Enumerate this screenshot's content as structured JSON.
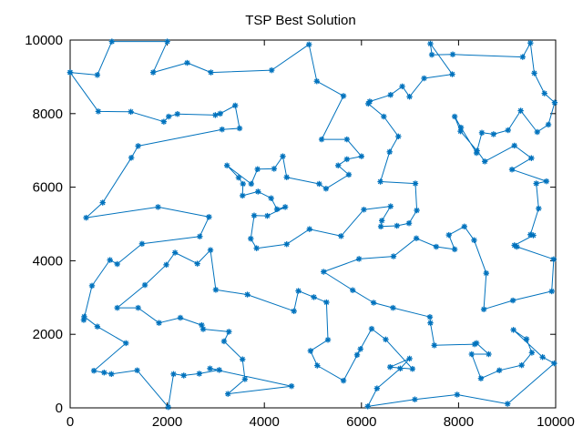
{
  "chart_data": {
    "type": "line",
    "title": "TSP Best Solution",
    "xlabel": "",
    "ylabel": "",
    "xlim": [
      0,
      10000
    ],
    "ylim": [
      0,
      10000
    ],
    "x_ticks": [
      0,
      2000,
      4000,
      6000,
      8000,
      10000
    ],
    "y_ticks": [
      0,
      2000,
      4000,
      6000,
      8000,
      10000
    ],
    "grid": false,
    "legend": "none",
    "marker": "asterisk",
    "series_color": "#0072bd",
    "series": [
      {
        "points": [
          [
            0,
            9120
          ],
          [
            560,
            9050
          ],
          [
            860,
            9960
          ],
          [
            2000,
            9960
          ],
          [
            1710,
            9120
          ],
          [
            2410,
            9380
          ],
          [
            2900,
            9120
          ],
          [
            4150,
            9180
          ],
          [
            4920,
            9880
          ],
          [
            5080,
            8880
          ],
          [
            5630,
            8480
          ],
          [
            5180,
            7300
          ],
          [
            5700,
            7300
          ],
          [
            6000,
            6840
          ],
          [
            5700,
            6760
          ],
          [
            5520,
            6590
          ],
          [
            5740,
            6340
          ],
          [
            5270,
            5960
          ],
          [
            5130,
            6090
          ],
          [
            4460,
            6270
          ],
          [
            4380,
            6840
          ],
          [
            4200,
            6500
          ],
          [
            3860,
            6490
          ],
          [
            3730,
            6090
          ],
          [
            3230,
            6590
          ],
          [
            3470,
            6260
          ],
          [
            3560,
            6090
          ],
          [
            3550,
            5770
          ],
          [
            3870,
            5880
          ],
          [
            4140,
            5700
          ],
          [
            4260,
            5400
          ],
          [
            4430,
            5460
          ],
          [
            4060,
            5220
          ],
          [
            3790,
            5230
          ],
          [
            3720,
            4600
          ],
          [
            3840,
            4340
          ],
          [
            4460,
            4450
          ],
          [
            4930,
            4860
          ],
          [
            5580,
            4670
          ],
          [
            6050,
            5390
          ],
          [
            6600,
            5480
          ],
          [
            6420,
            5090
          ],
          [
            6400,
            4930
          ],
          [
            6730,
            4950
          ],
          [
            6980,
            5020
          ],
          [
            7140,
            5370
          ],
          [
            7110,
            6100
          ],
          [
            6390,
            6150
          ],
          [
            6580,
            6960
          ],
          [
            6760,
            7380
          ],
          [
            6460,
            7920
          ],
          [
            6140,
            8270
          ],
          [
            6170,
            8330
          ],
          [
            6600,
            8510
          ],
          [
            6840,
            8740
          ],
          [
            6990,
            8460
          ],
          [
            7290,
            8960
          ],
          [
            7870,
            9070
          ],
          [
            7420,
            9900
          ],
          [
            7450,
            9600
          ],
          [
            7880,
            9610
          ],
          [
            9320,
            9540
          ],
          [
            9480,
            9920
          ],
          [
            9560,
            9100
          ],
          [
            9770,
            8550
          ],
          [
            9980,
            8300
          ],
          [
            9850,
            7700
          ],
          [
            9620,
            7500
          ],
          [
            9280,
            8080
          ],
          [
            9020,
            7550
          ],
          [
            8720,
            7440
          ],
          [
            8480,
            7480
          ],
          [
            8370,
            6930
          ],
          [
            8050,
            7620
          ],
          [
            7920,
            7920
          ],
          [
            8040,
            7520
          ],
          [
            8380,
            6990
          ],
          [
            8540,
            6700
          ],
          [
            9150,
            7130
          ],
          [
            9500,
            6790
          ],
          [
            9100,
            6480
          ],
          [
            9810,
            6160
          ],
          [
            9600,
            6100
          ],
          [
            9650,
            5420
          ],
          [
            9480,
            4710
          ],
          [
            9540,
            4690
          ],
          [
            9150,
            4420
          ],
          [
            9200,
            4380
          ],
          [
            9960,
            4040
          ],
          [
            9920,
            3170
          ],
          [
            9120,
            2920
          ],
          [
            8520,
            2680
          ],
          [
            8570,
            3660
          ],
          [
            8320,
            4560
          ],
          [
            8120,
            4930
          ],
          [
            7800,
            4700
          ],
          [
            7920,
            4310
          ],
          [
            7540,
            4380
          ],
          [
            7130,
            4610
          ],
          [
            6660,
            4120
          ],
          [
            5950,
            4050
          ],
          [
            5220,
            3700
          ],
          [
            5820,
            3200
          ],
          [
            6250,
            2860
          ],
          [
            6650,
            2720
          ],
          [
            7410,
            2470
          ],
          [
            7420,
            2310
          ],
          [
            7500,
            1700
          ],
          [
            8330,
            1730
          ],
          [
            8370,
            1760
          ],
          [
            8620,
            1460
          ],
          [
            8270,
            1460
          ],
          [
            8460,
            800
          ],
          [
            8840,
            1020
          ],
          [
            9300,
            1160
          ],
          [
            9510,
            1500
          ],
          [
            9400,
            1870
          ],
          [
            9130,
            2120
          ],
          [
            9730,
            1380
          ],
          [
            9970,
            1210
          ],
          [
            9010,
            110
          ],
          [
            7970,
            360
          ],
          [
            7100,
            230
          ],
          [
            6130,
            40
          ],
          [
            6320,
            530
          ],
          [
            6800,
            1070
          ],
          [
            6990,
            1340
          ],
          [
            6590,
            1110
          ],
          [
            7050,
            1060
          ],
          [
            6500,
            1860
          ],
          [
            6210,
            2150
          ],
          [
            5910,
            1440
          ],
          [
            5980,
            1600
          ],
          [
            5630,
            740
          ],
          [
            5090,
            1150
          ],
          [
            4950,
            1550
          ],
          [
            5310,
            1850
          ],
          [
            5280,
            2870
          ],
          [
            5020,
            3010
          ],
          [
            4700,
            3180
          ],
          [
            4610,
            2630
          ],
          [
            3650,
            3080
          ],
          [
            3000,
            3210
          ],
          [
            2890,
            4290
          ],
          [
            2620,
            3920
          ],
          [
            2160,
            4220
          ],
          [
            1980,
            3890
          ],
          [
            1540,
            3340
          ],
          [
            970,
            2720
          ],
          [
            1400,
            2720
          ],
          [
            1830,
            2310
          ],
          [
            2270,
            2450
          ],
          [
            2710,
            2250
          ],
          [
            2740,
            2140
          ],
          [
            3270,
            2070
          ],
          [
            3170,
            1810
          ],
          [
            3550,
            1320
          ],
          [
            3600,
            780
          ],
          [
            3250,
            380
          ],
          [
            4560,
            590
          ],
          [
            2880,
            1070
          ],
          [
            3070,
            1030
          ],
          [
            2660,
            930
          ],
          [
            2340,
            880
          ],
          [
            2130,
            920
          ],
          [
            2020,
            20
          ],
          [
            1380,
            1020
          ],
          [
            850,
            920
          ],
          [
            700,
            960
          ],
          [
            490,
            1010
          ],
          [
            1150,
            1760
          ],
          [
            560,
            2210
          ],
          [
            290,
            2480
          ],
          [
            280,
            2390
          ],
          [
            450,
            3320
          ],
          [
            820,
            4020
          ],
          [
            970,
            3910
          ],
          [
            1480,
            4460
          ],
          [
            2670,
            4660
          ],
          [
            2860,
            5190
          ],
          [
            1810,
            5460
          ],
          [
            330,
            5170
          ],
          [
            670,
            5580
          ],
          [
            1260,
            6800
          ],
          [
            1400,
            7120
          ],
          [
            3130,
            7570
          ],
          [
            3490,
            7600
          ],
          [
            3400,
            8220
          ],
          [
            3090,
            8000
          ],
          [
            2990,
            7960
          ],
          [
            2210,
            7990
          ],
          [
            2030,
            7920
          ],
          [
            1930,
            7780
          ],
          [
            1250,
            8050
          ],
          [
            580,
            8060
          ],
          [
            0,
            9120
          ]
        ]
      }
    ]
  }
}
